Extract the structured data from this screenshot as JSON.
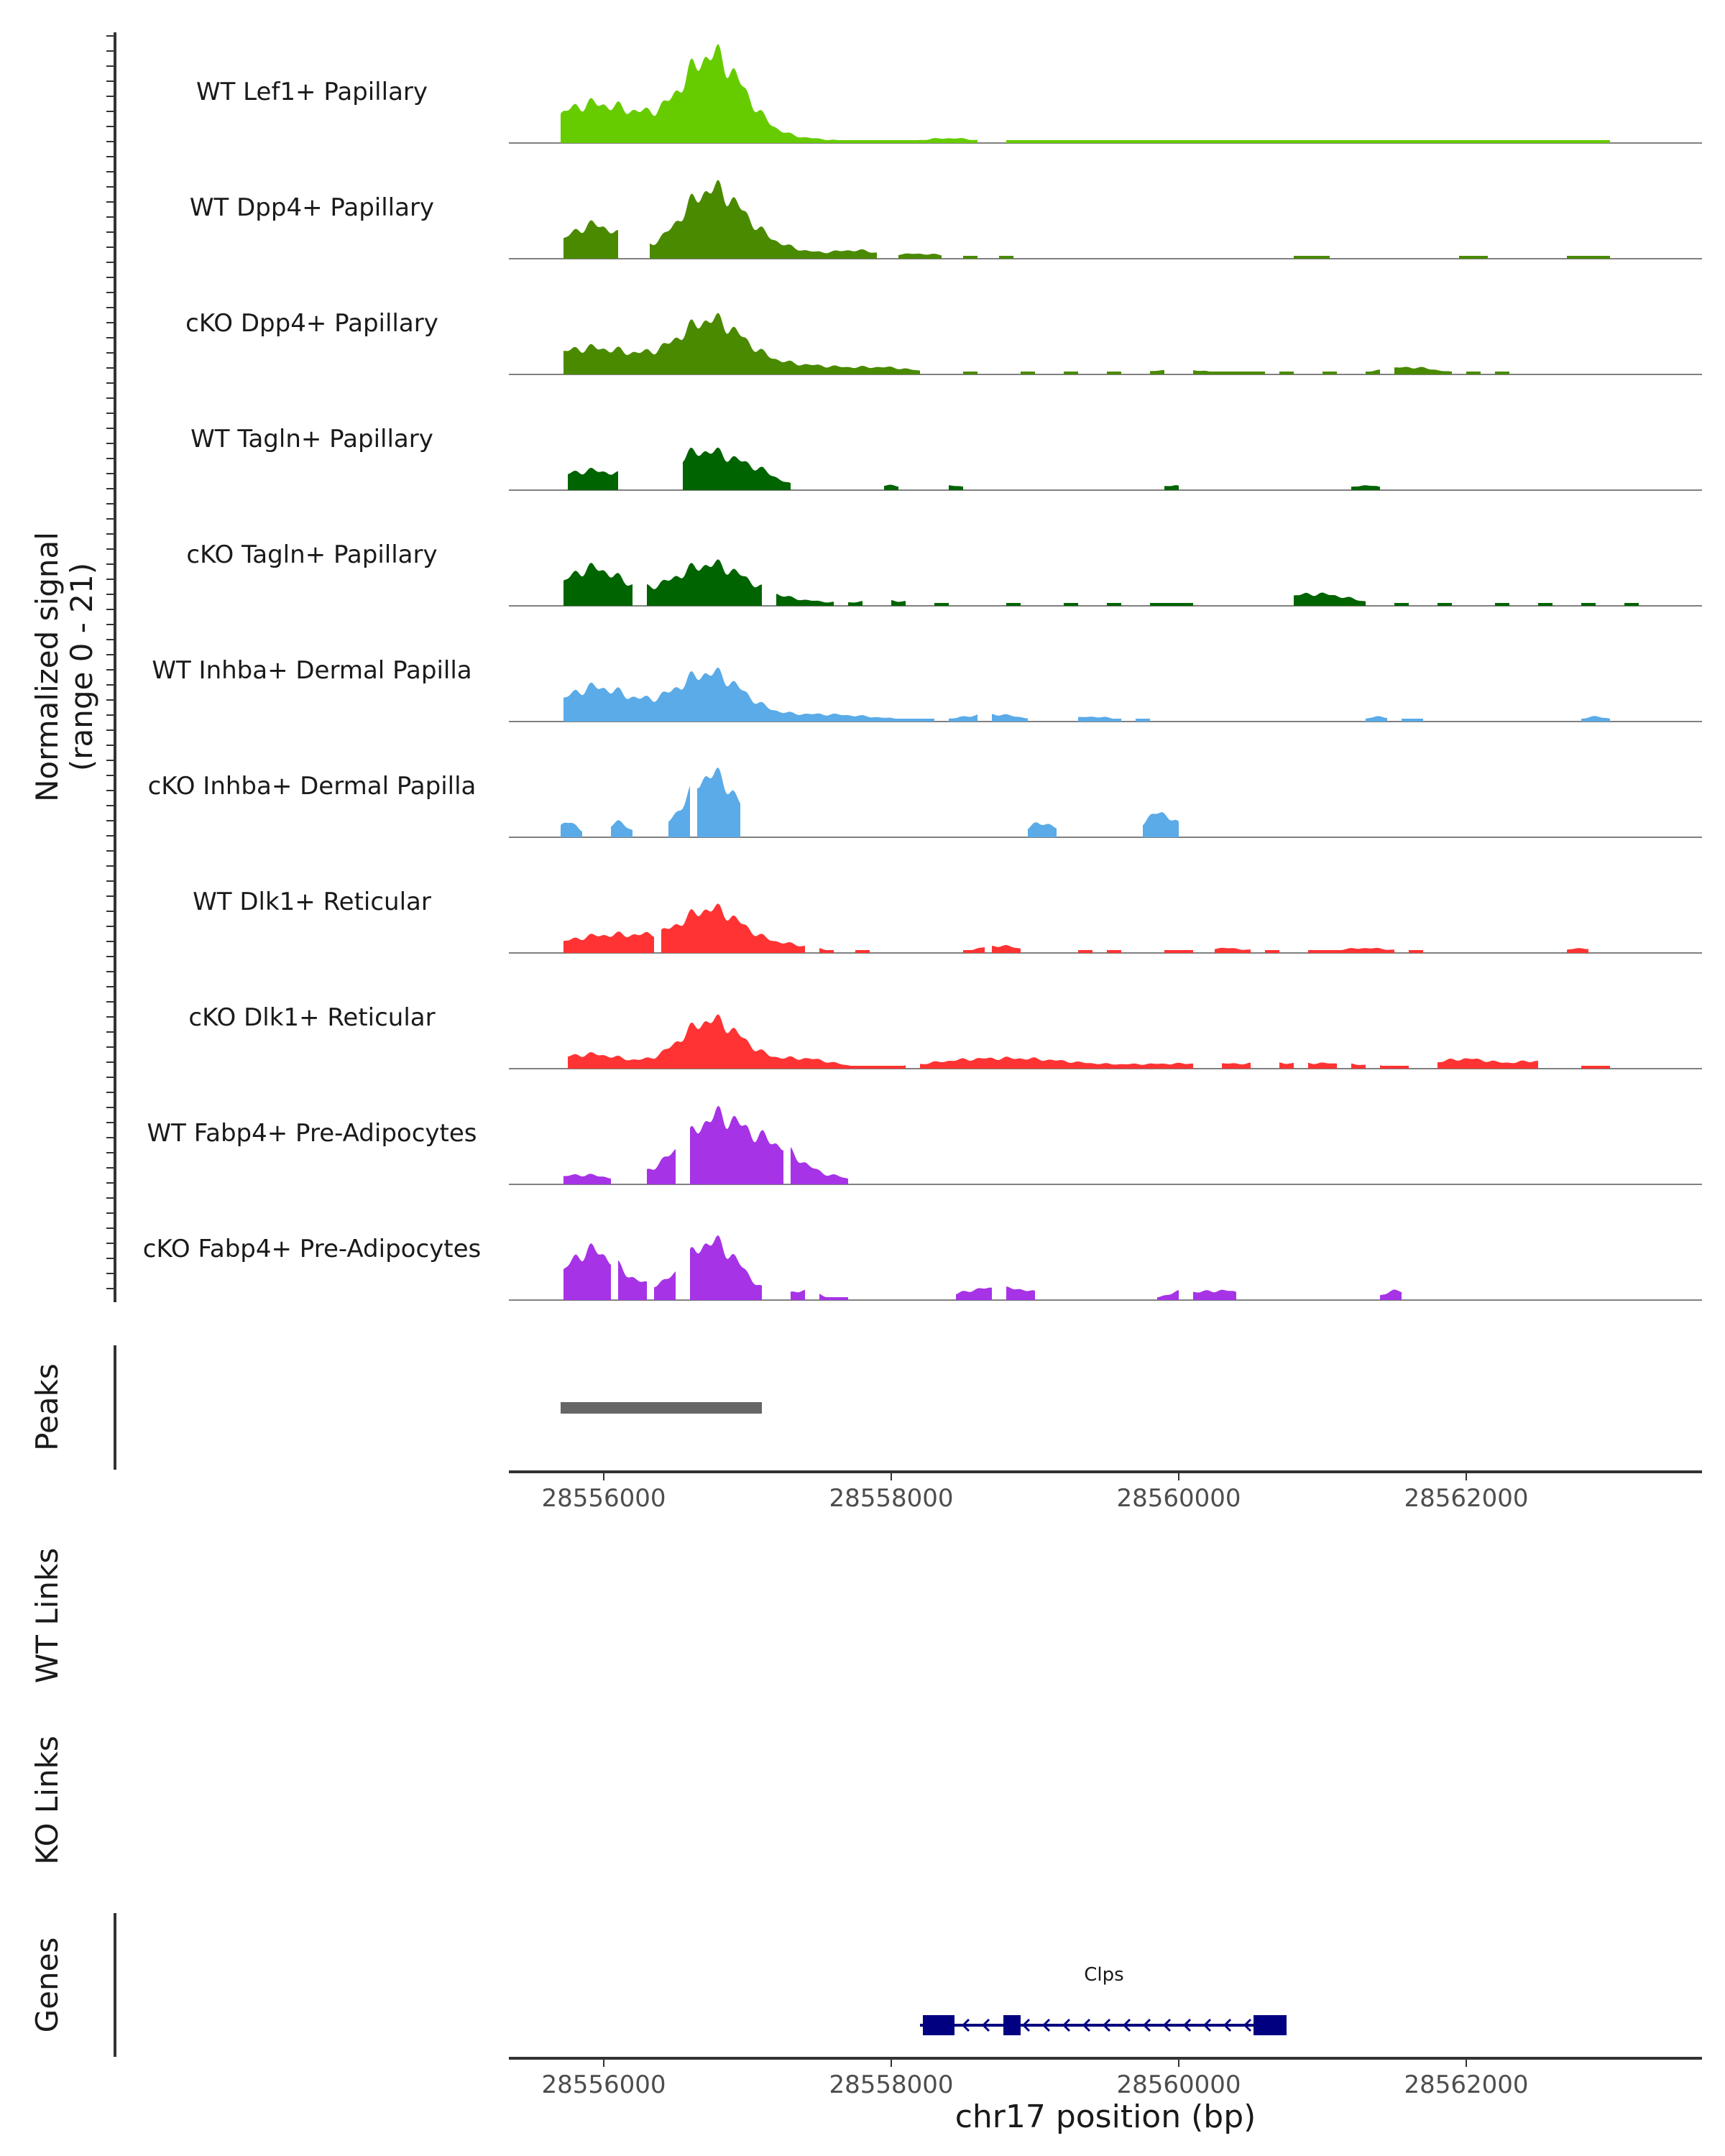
{
  "chart_data": {
    "type": "area",
    "title": "",
    "region": {
      "chrom": "chr17",
      "start": 28555700,
      "end": 28563300
    },
    "xlabel": "chr17 position (bp)",
    "ylabel": "Normalized signal",
    "ylabel_sub": "(range 0 - 21)",
    "ylim": [
      0,
      21
    ],
    "x_ticks": [
      "28556000",
      "28558000",
      "28560000",
      "28562000"
    ],
    "tracks": [
      {
        "name": "WT Lef1+ Papillary",
        "color": "#66cc00",
        "peaks": [
          [
            28555900,
            8,
            260
          ],
          [
            28556250,
            2,
            150
          ],
          [
            28556750,
            18,
            220
          ],
          [
            28557300,
            1,
            300
          ],
          [
            28558400,
            1,
            200
          ]
        ],
        "spans": [
          [
            28555700,
            28558600
          ],
          [
            28558800,
            28563000
          ]
        ]
      },
      {
        "name": "WT Dpp4+ Papillary",
        "color": "#4a8a00",
        "peaks": [
          [
            28555930,
            7,
            200
          ],
          [
            28556750,
            14,
            220
          ],
          [
            28557200,
            2,
            250
          ],
          [
            28557750,
            1.5,
            150
          ],
          [
            28558200,
            1,
            200
          ]
        ],
        "spans": [
          [
            28555720,
            28556100
          ],
          [
            28556320,
            28557600
          ],
          [
            28557600,
            28557900
          ],
          [
            28558050,
            28558350
          ],
          [
            28558500,
            28558600
          ],
          [
            28558750,
            28558850
          ],
          [
            28560800,
            28561050
          ],
          [
            28561950,
            28562150
          ],
          [
            28562700,
            28563000
          ]
        ]
      },
      {
        "name": "cKO Dpp4+ Papillary",
        "color": "#4a8a00",
        "peaks": [
          [
            28555800,
            4,
            250
          ],
          [
            28556200,
            3,
            300
          ],
          [
            28556750,
            10,
            220
          ],
          [
            28557300,
            2,
            400
          ],
          [
            28558000,
            1,
            200
          ],
          [
            28560000,
            1,
            200
          ],
          [
            28561600,
            1.5,
            200
          ]
        ],
        "spans": [
          [
            28555720,
            28558200
          ],
          [
            28558500,
            28558600
          ],
          [
            28558900,
            28559000
          ],
          [
            28559200,
            28559300
          ],
          [
            28559500,
            28559600
          ],
          [
            28559800,
            28559900
          ],
          [
            28560100,
            28560600
          ],
          [
            28560700,
            28560800
          ],
          [
            28561000,
            28561100
          ],
          [
            28561300,
            28561400
          ],
          [
            28561500,
            28561900
          ],
          [
            28562000,
            28562100
          ],
          [
            28562200,
            28562300
          ]
        ]
      },
      {
        "name": "WT Tagln+ Papillary",
        "color": "#006400",
        "peaks": [
          [
            28555900,
            4,
            250
          ],
          [
            28556700,
            8,
            250
          ],
          [
            28557100,
            2,
            150
          ],
          [
            28558000,
            1,
            100
          ],
          [
            28558400,
            1,
            100
          ],
          [
            28559950,
            1,
            80
          ],
          [
            28561300,
            1,
            100
          ]
        ],
        "spans": [
          [
            28555750,
            28556100
          ],
          [
            28556550,
            28557300
          ],
          [
            28557950,
            28558050
          ],
          [
            28558400,
            28558500
          ],
          [
            28559900,
            28560000
          ],
          [
            28561200,
            28561400
          ]
        ]
      },
      {
        "name": "cKO Tagln+ Papillary",
        "color": "#006400",
        "peaks": [
          [
            28555900,
            7,
            200
          ],
          [
            28556250,
            1.5,
            300
          ],
          [
            28556750,
            8,
            250
          ],
          [
            28557300,
            1,
            300
          ],
          [
            28558000,
            1,
            200
          ],
          [
            28560950,
            2.5,
            250
          ]
        ],
        "spans": [
          [
            28555720,
            28556200
          ],
          [
            28556300,
            28556700
          ],
          [
            28556700,
            28557100
          ],
          [
            28557200,
            28557600
          ],
          [
            28557700,
            28557800
          ],
          [
            28558000,
            28558100
          ],
          [
            28558300,
            28558400
          ],
          [
            28558800,
            28558900
          ],
          [
            28559200,
            28559300
          ],
          [
            28559500,
            28559600
          ],
          [
            28559800,
            28560100
          ],
          [
            28560800,
            28561300
          ],
          [
            28561500,
            28561600
          ],
          [
            28561800,
            28561900
          ],
          [
            28562200,
            28562300
          ],
          [
            28562500,
            28562600
          ],
          [
            28562800,
            28562900
          ],
          [
            28563100,
            28563200
          ]
        ]
      },
      {
        "name": "WT Inhba+ Dermal Papilla",
        "color": "#5aabe8",
        "peaks": [
          [
            28555900,
            6,
            220
          ],
          [
            28556300,
            2.5,
            300
          ],
          [
            28556750,
            9,
            220
          ],
          [
            28557500,
            1.5,
            400
          ],
          [
            28558700,
            1.5,
            200
          ],
          [
            28559400,
            1,
            150
          ],
          [
            28561400,
            1,
            100
          ],
          [
            28562900,
            1,
            100
          ]
        ],
        "spans": [
          [
            28555720,
            28558300
          ],
          [
            28558400,
            28558600
          ],
          [
            28558700,
            28558950
          ],
          [
            28559300,
            28559600
          ],
          [
            28559700,
            28559800
          ],
          [
            28561300,
            28561450
          ],
          [
            28561550,
            28561700
          ],
          [
            28562800,
            28563000
          ]
        ]
      },
      {
        "name": "cKO Inhba+ Dermal Papilla",
        "color": "#5aabe8",
        "peaks": [
          [
            28555750,
            3,
            80
          ],
          [
            28556100,
            3,
            80
          ],
          [
            28556750,
            13,
            180
          ],
          [
            28559050,
            3,
            100
          ],
          [
            28559870,
            5,
            120
          ]
        ],
        "spans": [
          [
            28555700,
            28555850
          ],
          [
            28556050,
            28556200
          ],
          [
            28556450,
            28556600
          ],
          [
            28556650,
            28556950
          ],
          [
            28558950,
            28559150
          ],
          [
            28559750,
            28560000
          ]
        ]
      },
      {
        "name": "WT Dlk1+ Reticular",
        "color": "#ff3333",
        "peaks": [
          [
            28555900,
            3,
            250
          ],
          [
            28556250,
            2,
            200
          ],
          [
            28556750,
            9,
            220
          ],
          [
            28557300,
            1.5,
            200
          ],
          [
            28558750,
            1.5,
            150
          ],
          [
            28560300,
            1,
            200
          ],
          [
            28561300,
            1,
            200
          ],
          [
            28562800,
            1,
            100
          ]
        ],
        "spans": [
          [
            28555720,
            28556350
          ],
          [
            28556400,
            28556600
          ],
          [
            28556600,
            28557000
          ],
          [
            28557000,
            28557400
          ],
          [
            28557500,
            28557600
          ],
          [
            28557750,
            28557850
          ],
          [
            28558500,
            28558650
          ],
          [
            28558700,
            28558900
          ],
          [
            28559300,
            28559400
          ],
          [
            28559500,
            28559600
          ],
          [
            28559900,
            28560100
          ],
          [
            28560250,
            28560500
          ],
          [
            28560600,
            28560700
          ],
          [
            28560900,
            28561000
          ],
          [
            28561000,
            28561500
          ],
          [
            28561600,
            28561700
          ],
          [
            28562700,
            28562850
          ]
        ]
      },
      {
        "name": "cKO Dlk1+ Reticular",
        "color": "#ff3333",
        "peaks": [
          [
            28555900,
            3,
            250
          ],
          [
            28556750,
            10,
            220
          ],
          [
            28557400,
            2,
            200
          ],
          [
            28558500,
            1.5,
            300
          ],
          [
            28559000,
            1.5,
            300
          ],
          [
            28560000,
            1,
            500
          ],
          [
            28561000,
            1,
            400
          ],
          [
            28562000,
            2,
            200
          ],
          [
            28562500,
            1.5,
            150
          ]
        ],
        "spans": [
          [
            28555750,
            28556300
          ],
          [
            28556300,
            28557700
          ],
          [
            28557700,
            28558100
          ],
          [
            28558200,
            28559000
          ],
          [
            28559000,
            28559500
          ],
          [
            28559500,
            28560100
          ],
          [
            28560300,
            28560500
          ],
          [
            28560700,
            28560800
          ],
          [
            28560900,
            28561100
          ],
          [
            28561200,
            28561300
          ],
          [
            28561400,
            28561600
          ],
          [
            28561800,
            28562500
          ],
          [
            28562800,
            28563000
          ]
        ]
      },
      {
        "name": "WT Fabp4+ Pre-Adipocytes",
        "color": "#a633e6",
        "peaks": [
          [
            28555850,
            2,
            200
          ],
          [
            28556400,
            2,
            150
          ],
          [
            28556800,
            14,
            220
          ],
          [
            28557200,
            5,
            150
          ],
          [
            28557400,
            2,
            150
          ],
          [
            28557650,
            1,
            100
          ]
        ],
        "spans": [
          [
            28555720,
            28556050
          ],
          [
            28556300,
            28556500
          ],
          [
            28556600,
            28557000
          ],
          [
            28557000,
            28557250
          ],
          [
            28557300,
            28557600
          ],
          [
            28557600,
            28557700
          ]
        ]
      },
      {
        "name": "cKO Fabp4+ Pre-Adipocytes",
        "color": "#a633e6",
        "peaks": [
          [
            28555900,
            10,
            180
          ],
          [
            28556200,
            2,
            150
          ],
          [
            28556750,
            12,
            200
          ],
          [
            28557400,
            2,
            100
          ],
          [
            28558600,
            2,
            150
          ],
          [
            28558900,
            2,
            150
          ],
          [
            28560000,
            1.5,
            100
          ],
          [
            28560300,
            2,
            150
          ],
          [
            28561500,
            2,
            80
          ]
        ],
        "spans": [
          [
            28555720,
            28556050
          ],
          [
            28556100,
            28556300
          ],
          [
            28556350,
            28556500
          ],
          [
            28556600,
            28557000
          ],
          [
            28557000,
            28557100
          ],
          [
            28557300,
            28557400
          ],
          [
            28557500,
            28557700
          ],
          [
            28558450,
            28558700
          ],
          [
            28558800,
            28559000
          ],
          [
            28559850,
            28560000
          ],
          [
            28560100,
            28560200
          ],
          [
            28560200,
            28560400
          ],
          [
            28561400,
            28561550
          ]
        ]
      }
    ],
    "peaks_track": {
      "label": "Peaks",
      "regions": [
        [
          28555700,
          28557100
        ]
      ]
    },
    "links_tracks": [
      "WT Links",
      "KO Links"
    ],
    "genes_track": {
      "label": "Genes",
      "genes": [
        {
          "name": "Clps",
          "start": 28558200,
          "end": 28560750,
          "strand": "-",
          "exons": [
            [
              28558220,
              28558440
            ],
            [
              28558780,
              28558900
            ],
            [
              28560520,
              28560750
            ]
          ],
          "color": "#000080"
        }
      ]
    }
  }
}
